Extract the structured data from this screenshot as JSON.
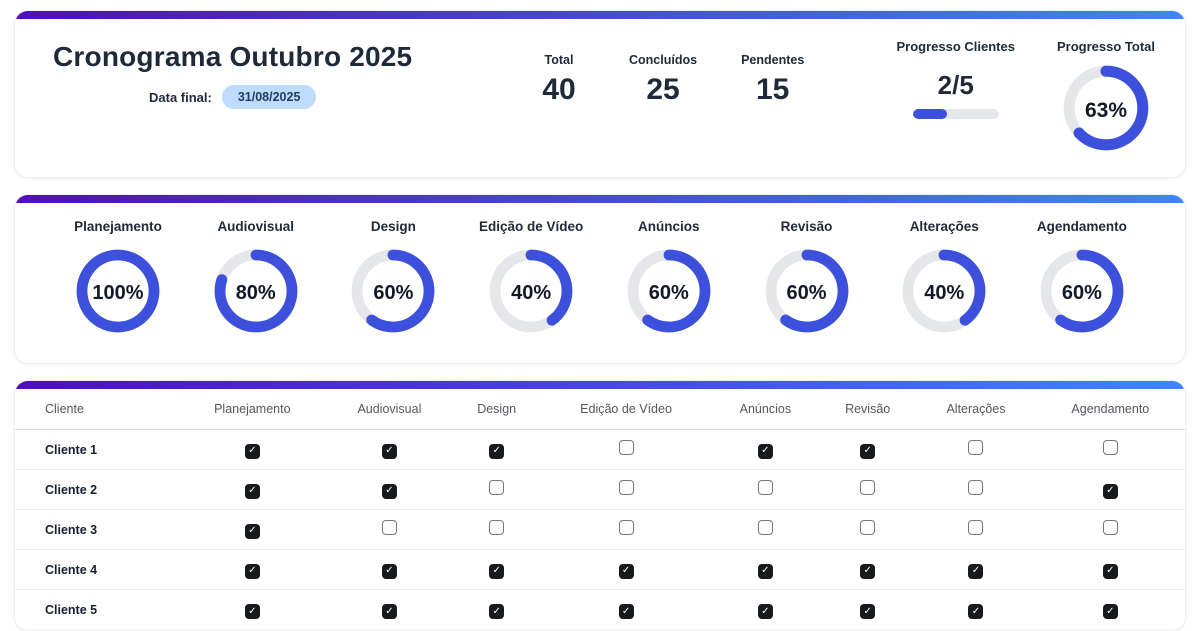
{
  "header": {
    "title": "Cronograma Outubro 2025",
    "date_label": "Data final:",
    "date_value": "31/08/2025",
    "stats": [
      {
        "label": "Total",
        "value": "40"
      },
      {
        "label": "Concluídos",
        "value": "25"
      },
      {
        "label": "Pendentes",
        "value": "15"
      }
    ],
    "progress_clients": {
      "label": "Progresso Clientes",
      "value": "2/5",
      "fraction_percent": 40
    },
    "progress_total": {
      "label": "Progresso Total",
      "percent": 63,
      "display": "63%"
    }
  },
  "gauges": [
    {
      "label": "Planejamento",
      "percent": 100,
      "display": "100%"
    },
    {
      "label": "Audiovisual",
      "percent": 80,
      "display": "80%"
    },
    {
      "label": "Design",
      "percent": 60,
      "display": "60%"
    },
    {
      "label": "Edição de Vídeo",
      "percent": 40,
      "display": "40%"
    },
    {
      "label": "Anúncios",
      "percent": 60,
      "display": "60%"
    },
    {
      "label": "Revisão",
      "percent": 60,
      "display": "60%"
    },
    {
      "label": "Alterações",
      "percent": 40,
      "display": "40%"
    },
    {
      "label": "Agendamento",
      "percent": 60,
      "display": "60%"
    }
  ],
  "table": {
    "columns": [
      "Cliente",
      "Planejamento",
      "Audiovisual",
      "Design",
      "Edição de Vídeo",
      "Anúncios",
      "Revisão",
      "Alterações",
      "Agendamento"
    ],
    "rows": [
      {
        "client": "Cliente 1",
        "checks": [
          true,
          true,
          true,
          false,
          true,
          true,
          false,
          false
        ]
      },
      {
        "client": "Cliente 2",
        "checks": [
          true,
          true,
          false,
          false,
          false,
          false,
          false,
          true
        ]
      },
      {
        "client": "Cliente 3",
        "checks": [
          true,
          false,
          false,
          false,
          false,
          false,
          false,
          false
        ]
      },
      {
        "client": "Cliente 4",
        "checks": [
          true,
          true,
          true,
          true,
          true,
          true,
          true,
          true
        ]
      },
      {
        "client": "Cliente 5",
        "checks": [
          true,
          true,
          true,
          true,
          true,
          true,
          true,
          true
        ]
      }
    ],
    "checked_glyph": "✓"
  },
  "colors": {
    "accent_blue": "#3c50dc",
    "track_gray": "#e5e7eb",
    "gradient_start": "#4f0eb8",
    "gradient_end": "#3e86f5",
    "badge_bg": "#bfdbfe",
    "checkbox_dark": "#17191c"
  }
}
